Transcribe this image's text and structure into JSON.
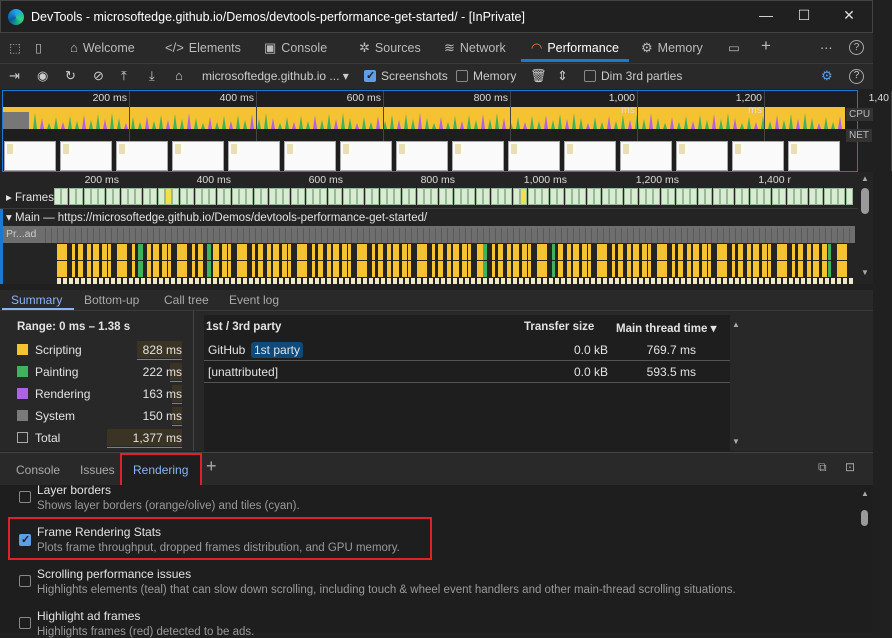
{
  "window": {
    "title": "DevTools - microsoftedge.github.io/Demos/devtools-performance-get-started/ - [InPrivate]",
    "min": "—",
    "max": "☐",
    "close": "✕"
  },
  "tabs": [
    {
      "label": "Welcome",
      "icon": "⌂"
    },
    {
      "label": "Elements",
      "icon": "</>"
    },
    {
      "label": "Console",
      "icon": "▣"
    },
    {
      "label": "Sources",
      "icon": "✲"
    },
    {
      "label": "Network",
      "icon": "≋"
    },
    {
      "label": "Performance",
      "icon": "◠"
    },
    {
      "label": "Memory",
      "icon": "⚙"
    }
  ],
  "tab_add": "+",
  "more": "⋯",
  "help": "?",
  "toolbar": {
    "url": "microsoftedge.github.io ...",
    "screenshots": "Screenshots",
    "screenshots_checked": true,
    "memory": "Memory",
    "memory_checked": false,
    "dim": "Dim 3rd parties",
    "dim_checked": false
  },
  "overview": {
    "ticks": [
      "200 ms",
      "400 ms",
      "600 ms",
      "800 ms",
      "1,000 ms",
      "1,200 ms",
      "1,40"
    ],
    "cpu": "CPU",
    "net": "NET"
  },
  "timeline": {
    "ticks": [
      "200 ms",
      "400 ms",
      "600 ms",
      "800 ms",
      "1,000 ms",
      "1,200 ms",
      "1,400 r"
    ],
    "frames": "Frames",
    "main": "Main — https://microsoftedge.github.io/Demos/devtools-performance-get-started/",
    "task": "Pr...ad"
  },
  "summary_tabs": [
    "Summary",
    "Bottom-up",
    "Call tree",
    "Event log"
  ],
  "summary": {
    "range": "Range: 0 ms – 1.38 s",
    "items": [
      {
        "label": "Scripting",
        "value": "828 ms",
        "color": "#f5c232",
        "ms": 828
      },
      {
        "label": "Painting",
        "value": "222 ms",
        "color": "#3fb25e",
        "ms": 222
      },
      {
        "label": "Rendering",
        "value": "163 ms",
        "color": "#ae62e8",
        "ms": 163
      },
      {
        "label": "System",
        "value": "150 ms",
        "color": "#7a7a7a",
        "ms": 150
      },
      {
        "label": "Total",
        "value": "1,377 ms",
        "color": "transparent",
        "ms": 1377
      }
    ]
  },
  "party_table": {
    "headers": [
      "1st / 3rd party",
      "Transfer size",
      "Main thread time"
    ],
    "rows": [
      {
        "name": "GitHub",
        "badge": "1st party",
        "size": "0.0 kB",
        "time": "769.7 ms"
      },
      {
        "name": "[unattributed]",
        "badge": "",
        "size": "0.0 kB",
        "time": "593.5 ms"
      }
    ]
  },
  "drawer_tabs": [
    "Console",
    "Issues",
    "Rendering"
  ],
  "rendering": [
    {
      "title": "Layer borders",
      "desc": "Shows layer borders (orange/olive) and tiles (cyan).",
      "checked": false
    },
    {
      "title": "Frame Rendering Stats",
      "desc": "Plots frame throughput, dropped frames distribution, and GPU memory.",
      "checked": true
    },
    {
      "title": "Scrolling performance issues",
      "desc": "Highlights elements (teal) that can slow down scrolling, including touch & wheel event handlers and other main-thread scrolling situations.",
      "checked": false
    },
    {
      "title": "Highlight ad frames",
      "desc": "Highlights frames (red) detected to be ads.",
      "checked": false
    }
  ]
}
